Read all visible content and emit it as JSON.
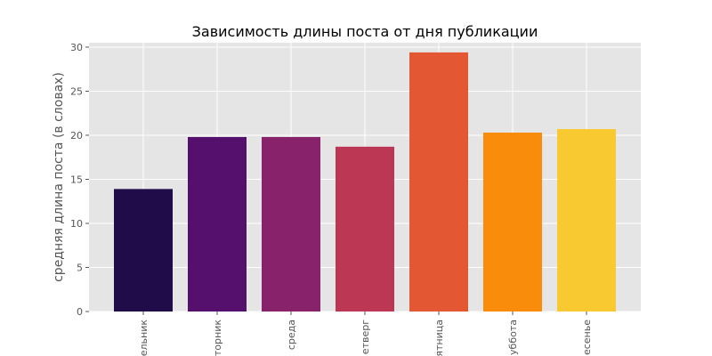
{
  "chart_data": {
    "type": "bar",
    "title": "Зависимость длины поста от дня публикации",
    "xlabel": "",
    "ylabel": "средняя длина поста (в словах)",
    "categories": [
      "ельник",
      "торник",
      "среда",
      "етверг",
      "ятница",
      "уббота",
      "есенье"
    ],
    "values": [
      13.9,
      19.8,
      19.8,
      18.7,
      29.4,
      20.3,
      20.7
    ],
    "colors": [
      "#1f0c48",
      "#550f6d",
      "#88226a",
      "#bb3754",
      "#e35832",
      "#f98c0a",
      "#f9c932"
    ],
    "ylim": [
      0,
      30.5
    ],
    "yticks": [
      0,
      5,
      10,
      15,
      20,
      25,
      30
    ],
    "grid": true,
    "legend": "none",
    "background": "#e5e5e5",
    "grid_color": "#ffffff"
  }
}
